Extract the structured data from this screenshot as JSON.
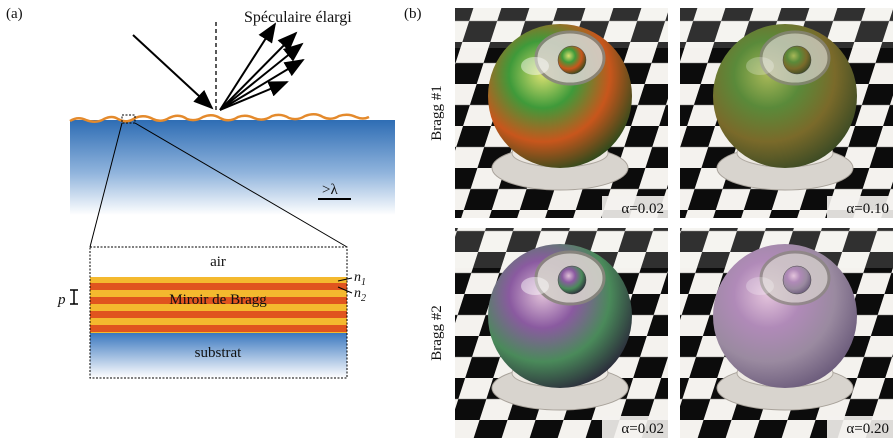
{
  "panel_a": {
    "label": "(a)",
    "annotation": "Spéculaire élargi",
    "scale": ">λ",
    "layers": {
      "air": "air",
      "mirror": "Miroir de Bragg",
      "substrate": "substrat",
      "period": "p",
      "n1": {
        "symbol": "n",
        "index": "1"
      },
      "n2": {
        "symbol": "n",
        "index": "2"
      }
    }
  },
  "panel_b": {
    "label": "(b)",
    "rows": [
      {
        "label": "Bragg #1",
        "images": [
          {
            "caption": "α=0.02"
          },
          {
            "caption": "α=0.10"
          }
        ]
      },
      {
        "label": "Bragg #2",
        "images": [
          {
            "caption": "α=0.02"
          },
          {
            "caption": "α=0.20"
          }
        ]
      }
    ]
  }
}
